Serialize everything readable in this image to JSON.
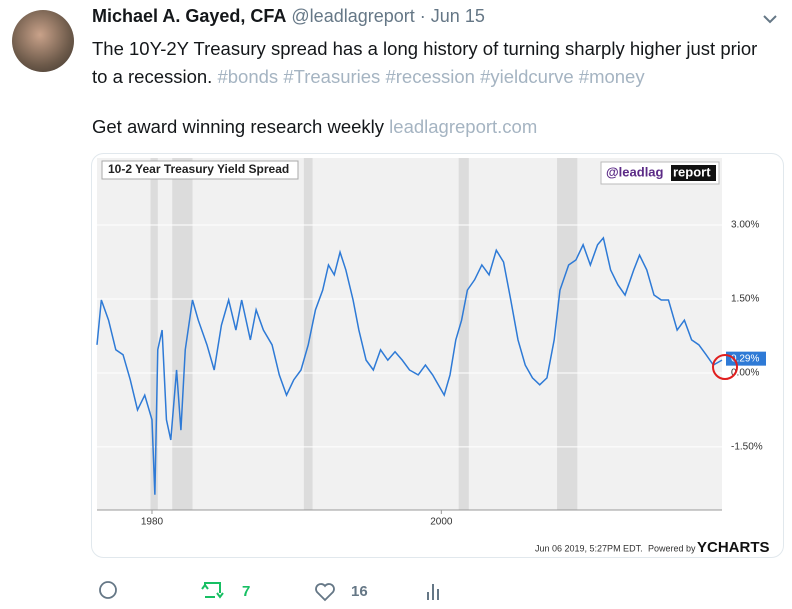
{
  "tweet": {
    "author": "Michael A. Gayed, CFA",
    "handle": "@leadlagreport",
    "separator": "·",
    "date": "Jun 15",
    "text": "The 10Y-2Y Treasury spread has a long history of turning sharply higher just prior to a recession.",
    "hashtags": [
      "#bonds",
      "#Treasuries",
      "#recession",
      "#yieldcurve",
      "#money"
    ],
    "text2": "Get award winning research weekly",
    "link": "leadlagreport.com"
  },
  "chart_data": {
    "type": "line",
    "title": "10-2 Year Treasury Yield Spread",
    "logo": [
      "@leadlag",
      "report"
    ],
    "footer": "Jun 06 2019, 5:27PM EDT.",
    "powered_by": "Powered by",
    "brand": "YCHARTS",
    "x": [
      1976.2,
      1976.5,
      1977,
      1977.5,
      1978,
      1978.5,
      1979,
      1979.5,
      1980.0,
      1980.2,
      1980.4,
      1980.7,
      1981.0,
      1981.3,
      1981.7,
      1982.0,
      1982.3,
      1982.8,
      1983.2,
      1983.8,
      1984.3,
      1984.8,
      1985.3,
      1985.8,
      1986.2,
      1986.8,
      1987.2,
      1987.7,
      1988.3,
      1988.8,
      1989.3,
      1989.8,
      1990.3,
      1990.8,
      1991.3,
      1991.8,
      1992.2,
      1992.6,
      1993.0,
      1993.4,
      1993.9,
      1994.3,
      1994.8,
      1995.3,
      1995.8,
      1996.3,
      1996.8,
      1997.3,
      1997.8,
      1998.4,
      1998.9,
      1999.4,
      2000.2,
      2000.6,
      2001.0,
      2001.4,
      2001.8,
      2002.3,
      2002.8,
      2003.3,
      2003.8,
      2004.3,
      2004.8,
      2005.3,
      2005.8,
      2006.3,
      2006.8,
      2007.3,
      2007.8,
      2008.2,
      2008.8,
      2009.3,
      2009.8,
      2010.3,
      2010.8,
      2011.2,
      2011.7,
      2012.2,
      2012.7,
      2013.3,
      2013.7,
      2014.2,
      2014.7,
      2015.2,
      2015.7,
      2016.3,
      2016.8,
      2017.3,
      2017.8,
      2018.3,
      2018.8,
      2019.4
    ],
    "series": [
      {
        "color": "#2e7ad6",
        "values": [
          0.57,
          1.48,
          1.07,
          0.47,
          0.37,
          -0.14,
          -0.75,
          -0.45,
          -0.95,
          -2.47,
          0.47,
          0.87,
          -0.95,
          -1.36,
          0.06,
          -1.16,
          0.47,
          1.48,
          1.07,
          0.57,
          0.06,
          0.97,
          1.48,
          0.87,
          1.48,
          0.67,
          1.28,
          0.87,
          0.57,
          -0.04,
          -0.45,
          -0.14,
          0.06,
          0.57,
          1.28,
          1.68,
          2.19,
          1.99,
          2.45,
          2.09,
          1.48,
          0.87,
          0.26,
          0.06,
          0.47,
          0.26,
          0.43,
          0.26,
          0.06,
          -0.04,
          0.16,
          -0.04,
          -0.45,
          -0.04,
          0.67,
          1.07,
          1.68,
          1.89,
          2.19,
          1.99,
          2.49,
          2.25,
          1.48,
          0.67,
          0.16,
          -0.1,
          -0.24,
          -0.1,
          0.67,
          1.68,
          2.19,
          2.29,
          2.6,
          2.19,
          2.6,
          2.74,
          2.09,
          1.79,
          1.58,
          2.09,
          2.39,
          2.09,
          1.58,
          1.48,
          1.48,
          0.87,
          1.07,
          0.67,
          0.57,
          0.37,
          0.16,
          0.26
        ]
      }
    ],
    "last_value": {
      "value": 0.29,
      "label": "0.29%"
    },
    "recessions": [
      [
        1979.9,
        1980.4
      ],
      [
        1981.4,
        1982.8
      ],
      [
        1990.5,
        1991.1
      ],
      [
        2001.2,
        2001.9
      ],
      [
        2008.0,
        2009.4
      ]
    ],
    "xlim": [
      1976.2,
      2019.4
    ],
    "xticks": [
      1980,
      2000
    ],
    "ylim": [
      -2.78,
      4.36
    ],
    "yticks": [
      {
        "value": -1.5,
        "label": "-1.50%"
      },
      {
        "value": 0,
        "label": "0.00%"
      },
      {
        "value": 1.5,
        "label": "1.50%"
      },
      {
        "value": 3,
        "label": "3.00%"
      }
    ],
    "grid": true
  },
  "actions": {
    "retweets": "7",
    "likes": "16"
  }
}
